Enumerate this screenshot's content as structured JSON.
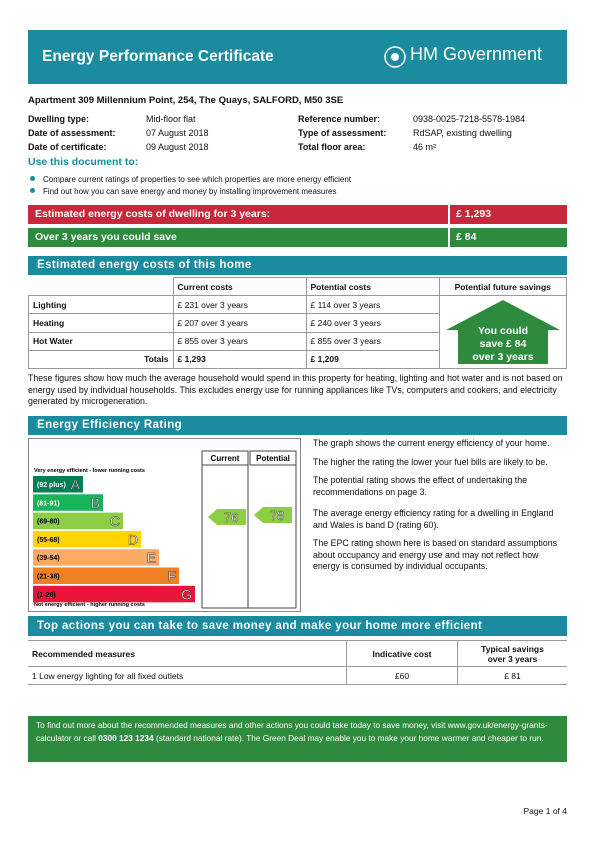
{
  "header": {
    "title": "Energy Performance Certificate",
    "logo": "HM Government"
  },
  "address": "Apartment 309 Millennium Point, 254, The Quays, SALFORD, M50 3SE",
  "details": {
    "left": [
      {
        "label": "Dwelling type:",
        "value": "Mid-floor flat"
      },
      {
        "label": "Date of assessment:",
        "value": "07  August  2018"
      },
      {
        "label": "Date of certificate:",
        "value": "09  August  2018"
      }
    ],
    "right": [
      {
        "label": "Reference number:",
        "value": "0938-0025-7218-5578-1984"
      },
      {
        "label": "Type of assessment:",
        "value": "RdSAP, existing dwelling"
      },
      {
        "label": "Total floor area:",
        "value": "46 m²"
      }
    ]
  },
  "use_document": {
    "heading": "Use this document to:",
    "bullets": [
      "Compare current ratings of properties to see which properties are more energy efficient",
      "Find out how you can save energy and money by installing improvement measures"
    ]
  },
  "summary": [
    {
      "label": "Estimated energy costs of dwelling for 3 years:",
      "value": "£ 1,293"
    },
    {
      "label": "Over 3 years you could save",
      "value": "£ 84"
    }
  ],
  "costs": {
    "heading": "Estimated energy costs of this home",
    "columns": [
      "Current costs",
      "Potential costs",
      "Potential future savings"
    ],
    "rows": [
      [
        "Lighting",
        "£ 231 over 3 years",
        "£ 114 over 3 years"
      ],
      [
        "Heating",
        "£ 207 over 3 years",
        "£ 240 over 3 years"
      ],
      [
        "Hot Water",
        "£ 855 over 3 years",
        "£ 855 over 3 years"
      ],
      [
        "Totals",
        "£ 1,293",
        "£ 1,209"
      ]
    ],
    "savings": [
      "You could",
      "save £ 84",
      "over 3 years"
    ],
    "note": "These figures show how much the average household would spend in this property for heating, lighting and hot water and is not based on energy used by individual households. This excludes energy use for running appliances like TVs, computers and cookers, and electricity generated by microgeneration."
  },
  "rating": {
    "heading": "Energy Efficiency Rating",
    "columns": [
      "Current",
      "Potential"
    ],
    "top_label": "Very energy efficient - lower running costs",
    "bottom_label": "Not energy efficient - higher running costs",
    "bands": [
      {
        "range": "(92 plus)",
        "letter": "A",
        "color": "#008054"
      },
      {
        "range": "(81-91)",
        "letter": "B",
        "color": "#19b459"
      },
      {
        "range": "(69-80)",
        "letter": "C",
        "color": "#8dce46"
      },
      {
        "range": "(55-68)",
        "letter": "D",
        "color": "#ffd500"
      },
      {
        "range": "(39-54)",
        "letter": "E",
        "color": "#fcaa65"
      },
      {
        "range": "(21-38)",
        "letter": "F",
        "color": "#ef8023"
      },
      {
        "range": "(1-20)",
        "letter": "G",
        "color": "#e9153b"
      }
    ],
    "current": 76,
    "potential": 78,
    "paragraphs": [
      "The graph shows the current energy efficiency of your home.",
      "The higher the rating the lower your fuel bills are likely to be.",
      "The potential rating shows the effect of undertaking the recommendations on page 3.",
      "The average energy efficiency rating for a dwelling in England and Wales is band D (rating 60).",
      "The EPC rating shown here is based on standard assumptions about occupancy and energy use and may not reflect how energy is consumed by individual occupants."
    ]
  },
  "actions": {
    "heading": "Top actions you can take to save money and make your home more efficient",
    "columns": [
      "Recommended measures",
      "Indicative cost",
      "Typical savings over 3 years"
    ],
    "rows": [
      [
        "1  Low energy lighting for all fixed outlets",
        "£60",
        "£ 81"
      ]
    ]
  },
  "info": [
    "To find out more about the recommended measures and other actions you could take today to save money, visit www.gov.uk/energy-grants-calculator or call ",
    "0300 123 1234",
    " (standard national rate). The Green Deal may enable you to make your home warmer and cheaper to run."
  ],
  "footer": "Page 1 of 4"
}
